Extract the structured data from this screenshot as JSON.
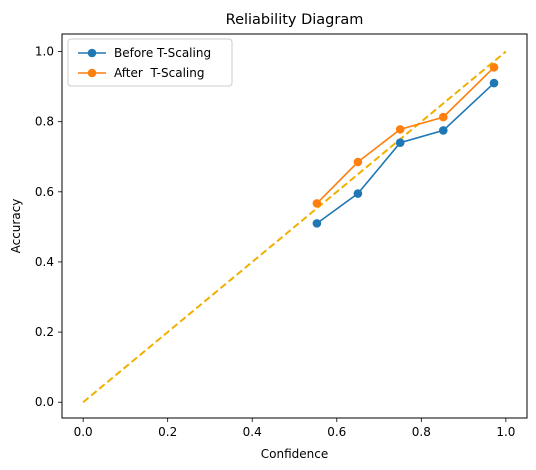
{
  "chart_data": {
    "type": "line",
    "title": "Reliability Diagram",
    "xlabel": "Confidence",
    "ylabel": "Accuracy",
    "xlim": [
      -0.05,
      1.05
    ],
    "ylim": [
      -0.045,
      1.05
    ],
    "xticks": [
      0.0,
      0.2,
      0.4,
      0.6,
      0.8,
      1.0
    ],
    "xtick_labels": [
      "0.0",
      "0.2",
      "0.4",
      "0.6",
      "0.8",
      "1.0"
    ],
    "yticks": [
      0.0,
      0.2,
      0.4,
      0.6,
      0.8,
      1.0
    ],
    "ytick_labels": [
      "0.0",
      "0.2",
      "0.4",
      "0.6",
      "0.8",
      "1.0"
    ],
    "grid": false,
    "legend_position": "top-left",
    "series": [
      {
        "name": "Before T-Scaling",
        "color": "#1f77b4",
        "marker": "circle",
        "x": [
          0.553,
          0.65,
          0.75,
          0.852,
          0.972
        ],
        "y": [
          0.51,
          0.595,
          0.74,
          0.775,
          0.91
        ]
      },
      {
        "name": "After  T-Scaling",
        "color": "#ff7f0e",
        "marker": "circle",
        "x": [
          0.553,
          0.65,
          0.75,
          0.852,
          0.972
        ],
        "y": [
          0.567,
          0.685,
          0.778,
          0.813,
          0.955
        ]
      }
    ],
    "reference_line": {
      "color": "#f0b000",
      "style": "dashed",
      "x": [
        0.0,
        1.0
      ],
      "y": [
        0.0,
        1.0
      ]
    }
  }
}
